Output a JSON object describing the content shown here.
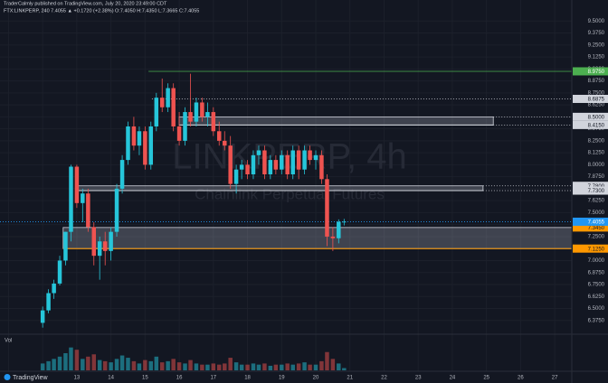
{
  "chart_data": {
    "type": "candlestick",
    "title": "TraderCalmly published on TradingView.com, July 20, 2020 23:49:00 CDT",
    "subtitle": "FTX:LINKPERP, 240  7.4055 ▲ +0.1720 (+2.38%) O:7.4050 H:7.4350 L:7.3665 C:7.4055",
    "watermark": "LINKPERP, 4h",
    "watermark_sub": "Chainlink Perpetual Futures",
    "volume_label": "Vol",
    "brand": "TradingView",
    "up_color": "#26c6da",
    "down_color": "#ef5350",
    "grid": true,
    "xlim": [
      10.75,
      27.5
    ],
    "xticks": [
      11,
      12,
      13,
      14,
      15,
      16,
      17,
      18,
      19,
      20,
      21,
      22,
      23,
      24,
      25,
      26,
      27
    ],
    "ylim": [
      6.25,
      9.55
    ],
    "yticks": [
      {
        "value": 6.375,
        "label": "6.3750"
      },
      {
        "value": 6.5,
        "label": "6.5000"
      },
      {
        "value": 6.625,
        "label": "6.6250"
      },
      {
        "value": 6.75,
        "label": "6.7500"
      },
      {
        "value": 6.875,
        "label": "6.8750"
      },
      {
        "value": 7,
        "label": "7.0000"
      },
      {
        "value": 7.125,
        "label": "7.1250"
      },
      {
        "value": 7.25,
        "label": "7.2500"
      },
      {
        "value": 7.375,
        "label": "7.3750"
      },
      {
        "value": 7.5,
        "label": "7.5000"
      },
      {
        "value": 7.625,
        "label": "7.6250"
      },
      {
        "value": 7.75,
        "label": "7.7500"
      },
      {
        "value": 7.875,
        "label": "7.8750"
      },
      {
        "value": 8,
        "label": "8.0000"
      },
      {
        "value": 8.125,
        "label": "8.1250"
      },
      {
        "value": 8.25,
        "label": "8.2500"
      },
      {
        "value": 8.375,
        "label": "8.3750"
      },
      {
        "value": 8.5,
        "label": "8.5000"
      },
      {
        "value": 8.625,
        "label": "8.6250"
      },
      {
        "value": 8.75,
        "label": "8.7500"
      },
      {
        "value": 8.875,
        "label": "8.8750"
      },
      {
        "value": 9,
        "label": "9.0000"
      },
      {
        "value": 9.125,
        "label": "9.1250"
      },
      {
        "value": 9.25,
        "label": "9.2500"
      },
      {
        "value": 9.375,
        "label": "9.3750"
      },
      {
        "value": 9.5,
        "label": "9.5000"
      }
    ],
    "vlim": [
      0,
      30
    ],
    "x": [
      12,
      12.17,
      12.33,
      12.5,
      12.67,
      12.83,
      13,
      13.17,
      13.33,
      13.5,
      13.67,
      13.83,
      14,
      14.17,
      14.33,
      14.5,
      14.67,
      14.83,
      15,
      15.17,
      15.33,
      15.5,
      15.67,
      15.83,
      16,
      16.17,
      16.33,
      16.5,
      16.67,
      16.83,
      17,
      17.17,
      17.33,
      17.5,
      17.67,
      17.83,
      18,
      18.17,
      18.33,
      18.5,
      18.67,
      18.83,
      19,
      19.17,
      19.33,
      19.5,
      19.67,
      19.83,
      20,
      20.17,
      20.33,
      20.5,
      20.67,
      20.83
    ],
    "open": [
      6.35,
      6.48,
      6.66,
      6.76,
      7.0,
      7.3,
      7.98,
      7.6,
      7.7,
      7.35,
      7.05,
      7.2,
      7.1,
      7.3,
      7.75,
      8.05,
      8.4,
      8.2,
      8.35,
      8.0,
      8.4,
      8.7,
      8.6,
      8.8,
      8.4,
      8.25,
      8.55,
      8.45,
      8.65,
      8.5,
      8.55,
      8.35,
      8.25,
      8.2,
      7.8,
      7.95,
      8.0,
      7.9,
      8.1,
      8.15,
      7.9,
      8.05,
      7.95,
      8.1,
      7.9,
      8.15,
      7.95,
      8.15,
      8.05,
      8.1,
      7.85,
      7.25,
      7.233,
      7.405
    ],
    "high": [
      6.52,
      6.7,
      6.8,
      7.05,
      7.3,
      8.0,
      8.0,
      7.75,
      7.75,
      7.4,
      7.25,
      7.3,
      7.35,
      7.8,
      8.1,
      8.45,
      8.5,
      8.4,
      8.4,
      8.45,
      8.75,
      8.9,
      8.85,
      8.85,
      8.55,
      8.6,
      8.95,
      8.7,
      8.7,
      8.65,
      8.6,
      8.45,
      8.35,
      8.3,
      8.0,
      8.05,
      8.05,
      8.15,
      8.2,
      8.2,
      8.1,
      8.1,
      8.15,
      8.15,
      8.2,
      8.2,
      8.2,
      8.2,
      8.15,
      8.15,
      7.9,
      7.35,
      7.43,
      7.435
    ],
    "low": [
      6.3,
      6.45,
      6.6,
      6.74,
      6.95,
      7.2,
      7.55,
      7.4,
      7.3,
      6.95,
      6.8,
      6.95,
      7.0,
      7.25,
      7.7,
      8.0,
      8.15,
      8.1,
      7.95,
      7.95,
      8.35,
      8.55,
      8.55,
      8.35,
      8.2,
      8.2,
      8.4,
      8.4,
      8.45,
      8.4,
      8.3,
      8.2,
      8.15,
      7.75,
      7.7,
      7.85,
      7.85,
      7.85,
      8.0,
      7.85,
      7.85,
      7.9,
      7.9,
      7.85,
      7.85,
      7.85,
      7.9,
      8.0,
      7.95,
      7.8,
      7.15,
      7.1,
      7.18,
      7.3665
    ],
    "close": [
      6.48,
      6.66,
      6.76,
      7.0,
      7.3,
      7.98,
      7.6,
      7.7,
      7.35,
      7.05,
      7.2,
      7.1,
      7.3,
      7.75,
      8.05,
      8.4,
      8.2,
      8.35,
      8.0,
      8.4,
      8.7,
      8.6,
      8.8,
      8.4,
      8.25,
      8.55,
      8.45,
      8.65,
      8.5,
      8.55,
      8.35,
      8.25,
      8.2,
      7.8,
      7.95,
      8.0,
      7.9,
      8.1,
      8.15,
      7.9,
      8.05,
      7.95,
      8.1,
      7.9,
      8.15,
      7.95,
      8.15,
      8.05,
      8.1,
      7.85,
      7.25,
      7.233,
      7.405,
      7.4055
    ],
    "volume": [
      6,
      8,
      10,
      12,
      15,
      20,
      18,
      10,
      12,
      14,
      9,
      8,
      7,
      10,
      13,
      11,
      8,
      6,
      9,
      8,
      12,
      7,
      8,
      10,
      7,
      6,
      9,
      6,
      5,
      5,
      6,
      5,
      6,
      11,
      7,
      5,
      5,
      6,
      5,
      6,
      4,
      5,
      5,
      6,
      5,
      6,
      7,
      5,
      5,
      8,
      16,
      10,
      6,
      2
    ],
    "levels": [
      {
        "value": 8.975,
        "label": "8.9750",
        "color": "#4caf50",
        "style": "solid",
        "from": 15.1
      },
      {
        "value": 8.6875,
        "label": "8.6875",
        "color": "#d1d4dc",
        "style": "dotted",
        "from": 15.2
      },
      {
        "value": 7.4055,
        "label": "7.4055",
        "color": "#2196f3",
        "style": "dotted",
        "from": 10.75
      }
    ],
    "zones": [
      {
        "top": {
          "value": 8.5,
          "label": "8.5000"
        },
        "bottom": {
          "value": 8.415,
          "label": "8.4150"
        },
        "from": 16.0,
        "to": 25.2,
        "color": "#d1d4dc"
      },
      {
        "top": {
          "value": 7.78,
          "label": "7.7800"
        },
        "bottom": {
          "value": 7.73,
          "label": "7.7300"
        },
        "from": 13.0,
        "to": 24.9,
        "color": "#d1d4dc"
      },
      {
        "top": {
          "value": 7.345,
          "label": "7.3450"
        },
        "bottom": {
          "value": 7.125,
          "label": "7.1250"
        },
        "from": 12.6,
        "to": 27.5,
        "color": "#ff9800"
      }
    ]
  }
}
